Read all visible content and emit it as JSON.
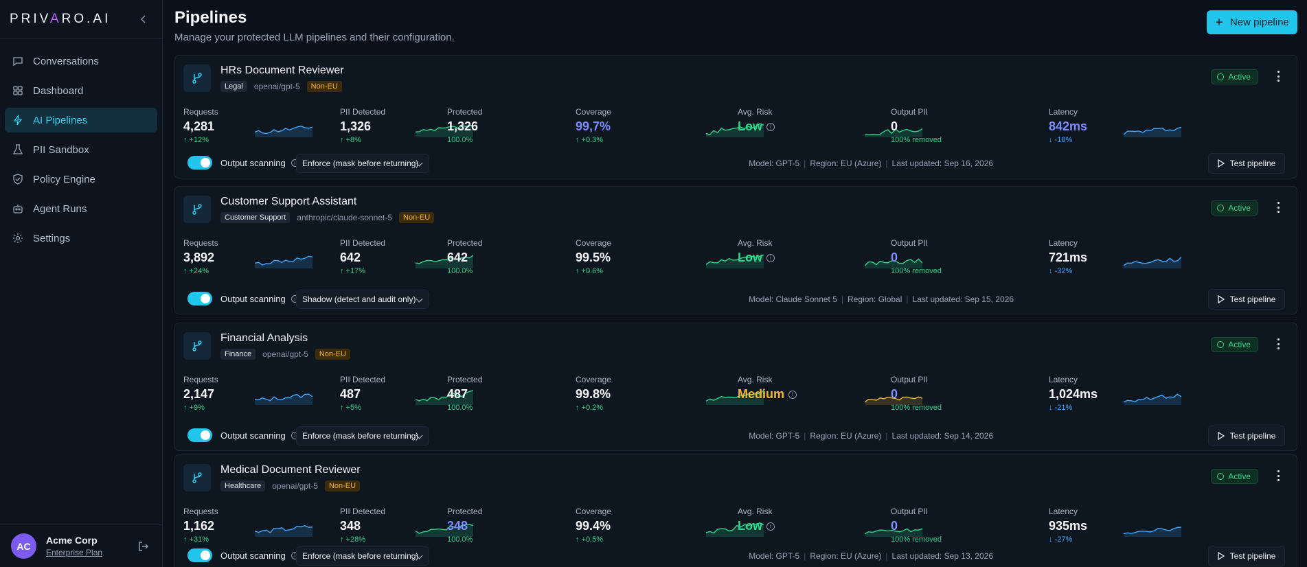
{
  "brand": {
    "logo_pre": "PRIV",
    "logo_v": "A",
    "logo_post": "RO.AI"
  },
  "nav": [
    {
      "label": "Conversations",
      "icon": "chat-icon",
      "active": false
    },
    {
      "label": "Dashboard",
      "icon": "grid-icon",
      "active": false
    },
    {
      "label": "AI Pipelines",
      "icon": "bolt-icon",
      "active": true
    },
    {
      "label": "PII Sandbox",
      "icon": "flask-icon",
      "active": false
    },
    {
      "label": "Policy Engine",
      "icon": "shield-icon",
      "active": false
    },
    {
      "label": "Agent Runs",
      "icon": "robot-icon",
      "active": false
    },
    {
      "label": "Settings",
      "icon": "gear-icon",
      "active": false
    }
  ],
  "user": {
    "initials": "AC",
    "name": "Acme Corp",
    "plan": "Enterprise Plan"
  },
  "header": {
    "title": "Pipelines",
    "subtitle": "Manage your protected LLM pipelines and their configuration.",
    "new_button": "New pipeline"
  },
  "labels": {
    "requests": "Requests",
    "pii": "PII Detected",
    "protected": "Protected",
    "coverage": "Coverage",
    "risk": "Avg. Risk",
    "output": "Output PII",
    "latency": "Latency",
    "output_scanning": "Output scanning",
    "test": "Test pipeline",
    "status": "Active"
  },
  "colors": {
    "accent": "#22c6ec",
    "success": "#2fd58a",
    "warning": "#f5b73a",
    "info": "#7b8cff",
    "latency": "#3fa8ff"
  },
  "pipelines": [
    {
      "name": "HRs Document Reviewer",
      "category": "Legal",
      "model_id": "openai/gpt-5",
      "region_tag": "Non-EU",
      "requests": "4,281",
      "requests_delta": "↑ +12%",
      "pii": "1,326",
      "pii_delta": "↑ +8%",
      "protected": "1,326",
      "protected_pct": "100.0%",
      "protected_style": "",
      "coverage": "99,7%",
      "coverage_delta": "↑ +0.3%",
      "coverage_style": "blue",
      "risk": "Low",
      "risk_style": "green",
      "output": "0",
      "output_note": "100% removed",
      "output_style": "",
      "latency": "842ms",
      "latency_delta": "↓ -18%",
      "latency_style": "blue",
      "mode": "Enforce (mask before returning)",
      "meta_model": "Model: GPT-5",
      "meta_region": "Region: EU (Azure)",
      "meta_updated": "Last updated: Sep 16, 2026"
    },
    {
      "name": "Customer Support Assistant",
      "category": "Customer Support",
      "model_id": "anthropic/claude-sonnet-5",
      "region_tag": "Non-EU",
      "requests": "3,892",
      "requests_delta": "↑ +24%",
      "pii": "642",
      "pii_delta": "↑ +17%",
      "protected": "642",
      "protected_pct": "100.0%",
      "protected_style": "",
      "coverage": "99.5%",
      "coverage_delta": "↑ +0.6%",
      "coverage_style": "",
      "risk": "Low",
      "risk_style": "green",
      "output": "0",
      "output_note": "100% removed",
      "output_style": "blue",
      "latency": "721ms",
      "latency_delta": "↓ -32%",
      "latency_style": "",
      "mode": "Shadow (detect and audit only)",
      "meta_model": "Model: Claude Sonnet 5",
      "meta_region": "Region: Global",
      "meta_updated": "Last updated: Sep 15, 2026"
    },
    {
      "name": "Financial Analysis",
      "category": "Finance",
      "model_id": "openai/gpt-5",
      "region_tag": "Non-EU",
      "requests": "2,147",
      "requests_delta": "↑ +9%",
      "pii": "487",
      "pii_delta": "↑ +5%",
      "protected": "487",
      "protected_pct": "100.0%",
      "protected_style": "",
      "coverage": "99.8%",
      "coverage_delta": "↑ +0.2%",
      "coverage_style": "",
      "risk": "Medium",
      "risk_style": "orange",
      "output": "0",
      "output_note": "100% removed",
      "output_style": "blue",
      "latency": "1,024ms",
      "latency_delta": "↓ -21%",
      "latency_style": "",
      "mode": "Enforce (mask before returning)",
      "meta_model": "Model: GPT-5",
      "meta_region": "Region: EU (Azure)",
      "meta_updated": "Last updated: Sep 14, 2026"
    },
    {
      "name": "Medical Document Reviewer",
      "category": "Healthcare",
      "model_id": "openai/gpt-5",
      "region_tag": "Non-EU",
      "requests": "1,162",
      "requests_delta": "↑ +31%",
      "pii": "348",
      "pii_delta": "↑ +28%",
      "protected": "348",
      "protected_pct": "100.0%",
      "protected_style": "blue",
      "coverage": "99.4%",
      "coverage_delta": "↑ +0.5%",
      "coverage_style": "",
      "risk": "Low",
      "risk_style": "green",
      "output": "0",
      "output_note": "100% removed",
      "output_style": "blue",
      "latency": "935ms",
      "latency_delta": "↓ -27%",
      "latency_style": "",
      "mode": "Enforce (mask before returning)",
      "meta_model": "Model: GPT-5",
      "meta_region": "Region: EU (Azure)",
      "meta_updated": "Last updated: Sep 13, 2026"
    }
  ]
}
